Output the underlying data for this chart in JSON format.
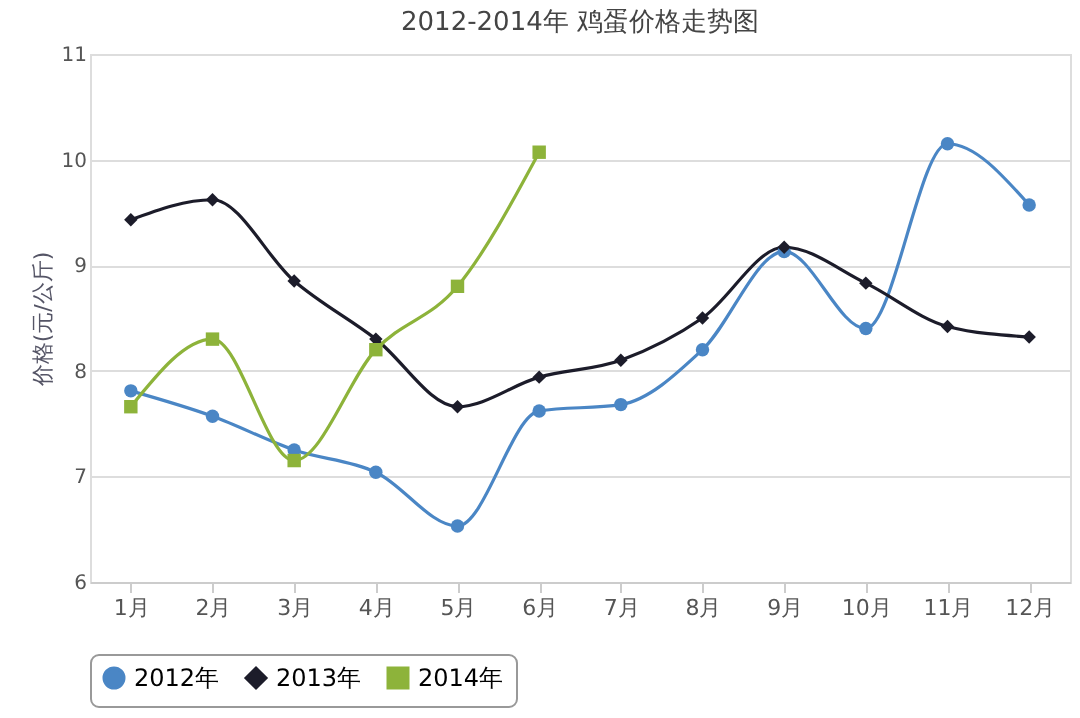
{
  "chart_data": {
    "type": "line",
    "title": "2012-2014年 鸡蛋价格走势图",
    "ylabel": "价格(元/公斤)",
    "categories": [
      "1月",
      "2月",
      "3月",
      "4月",
      "5月",
      "6月",
      "7月",
      "8月",
      "9月",
      "10月",
      "11月",
      "12月"
    ],
    "series": [
      {
        "name": "2012年",
        "color": "#4a86c5",
        "marker": "circle",
        "values": [
          7.81,
          7.57,
          7.25,
          7.04,
          6.53,
          7.62,
          7.68,
          8.2,
          9.13,
          8.4,
          10.15,
          9.57
        ]
      },
      {
        "name": "2013年",
        "color": "#1c1c2a",
        "marker": "diamond",
        "values": [
          9.43,
          9.62,
          8.85,
          8.3,
          7.66,
          7.94,
          8.1,
          8.5,
          9.17,
          8.83,
          8.42,
          8.32
        ]
      },
      {
        "name": "2014年",
        "color": "#8db33a",
        "marker": "square",
        "values": [
          7.66,
          8.3,
          7.15,
          8.2,
          8.8,
          10.07,
          null,
          null,
          null,
          null,
          null,
          null
        ]
      }
    ],
    "ylim": [
      6,
      11
    ],
    "yticks": [
      6,
      7,
      8,
      9,
      10,
      11
    ],
    "grid": "y",
    "legend": "bottom",
    "line_style": "solid"
  }
}
